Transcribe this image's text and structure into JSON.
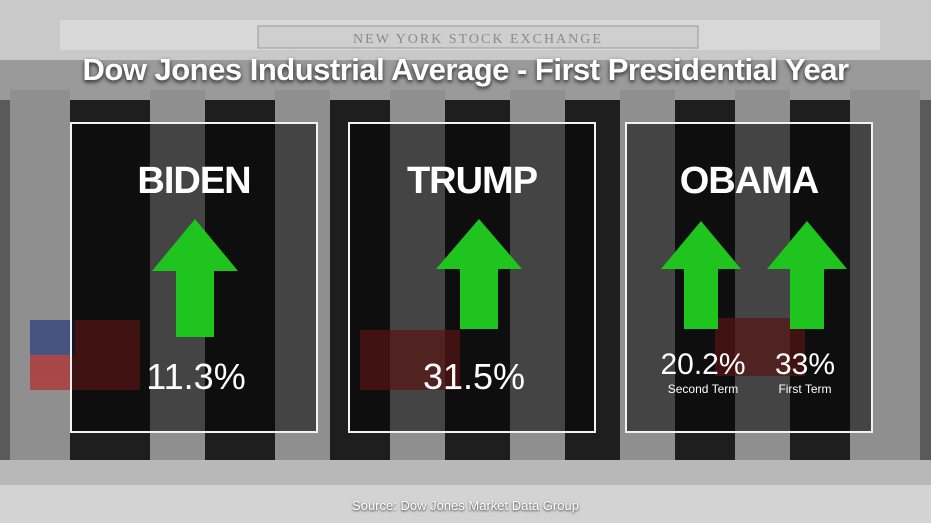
{
  "title": "Dow Jones Industrial Average - First Presidential Year",
  "building_inscription": "NEW YORK STOCK EXCHANGE",
  "panels": [
    {
      "name": "BIDEN",
      "value": "11.3%"
    },
    {
      "name": "TRUMP",
      "value": "31.5%"
    },
    {
      "name": "OBAMA",
      "values": [
        {
          "value": "20.2%",
          "label": "Second Term"
        },
        {
          "value": "33%",
          "label": "First Term"
        }
      ]
    }
  ],
  "source": "Source: Dow Jones Market Data Group",
  "colors": {
    "arrow": "#1fc41f",
    "panel_border": "#f2f2f2",
    "text": "#ffffff"
  },
  "icons": {
    "arrow": "up-arrow-icon"
  }
}
